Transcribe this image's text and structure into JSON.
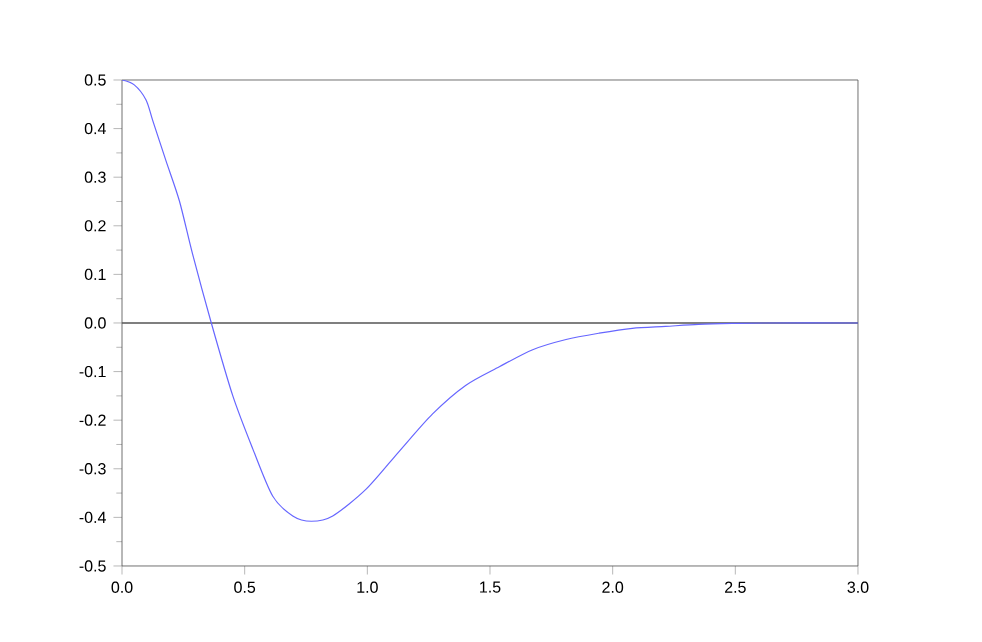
{
  "chart_data": {
    "type": "line",
    "xlim": [
      0,
      3
    ],
    "ylim": [
      -0.5,
      0.5
    ],
    "xticks": [
      {
        "value": 0,
        "label": "0.0"
      },
      {
        "value": 0.5,
        "label": "0.5"
      },
      {
        "value": 1,
        "label": "1.0"
      },
      {
        "value": 1.5,
        "label": "1.5"
      },
      {
        "value": 2,
        "label": "2.0"
      },
      {
        "value": 2.5,
        "label": "2.5"
      },
      {
        "value": 3,
        "label": "3.0"
      }
    ],
    "yticks": [
      {
        "value": -0.5,
        "label": "-0.5"
      },
      {
        "value": -0.4,
        "label": "-0.4"
      },
      {
        "value": -0.3,
        "label": "-0.3"
      },
      {
        "value": -0.2,
        "label": "-0.2"
      },
      {
        "value": -0.1,
        "label": "-0.1"
      },
      {
        "value": 0,
        "label": "0.0"
      },
      {
        "value": 0.1,
        "label": "0.1"
      },
      {
        "value": 0.2,
        "label": "0.2"
      },
      {
        "value": 0.3,
        "label": "0.3"
      },
      {
        "value": 0.4,
        "label": "0.4"
      },
      {
        "value": 0.5,
        "label": "0.5"
      }
    ],
    "ref_lines": [
      {
        "axis": "y",
        "value": 0,
        "color": "#555555"
      }
    ],
    "series": [
      {
        "color": "#6666ff",
        "x": [
          0,
          0.05,
          0.098,
          0.125,
          0.179,
          0.234,
          0.288,
          0.364,
          0.451,
          0.533,
          0.614,
          0.696,
          0.772,
          0.859,
          0.995,
          1.13,
          1.266,
          1.402,
          1.538,
          1.674,
          1.81,
          1.945,
          2.08,
          2.216,
          2.35,
          2.488,
          2.62,
          3.0
        ],
        "values": [
          0.5,
          0.49,
          0.459,
          0.417,
          0.334,
          0.251,
          0.141,
          0,
          -0.149,
          -0.259,
          -0.356,
          -0.397,
          -0.408,
          -0.397,
          -0.342,
          -0.264,
          -0.187,
          -0.128,
          -0.09,
          -0.055,
          -0.034,
          -0.021,
          -0.011,
          -0.007,
          -0.003,
          -0.001,
          0,
          0
        ]
      }
    ]
  }
}
